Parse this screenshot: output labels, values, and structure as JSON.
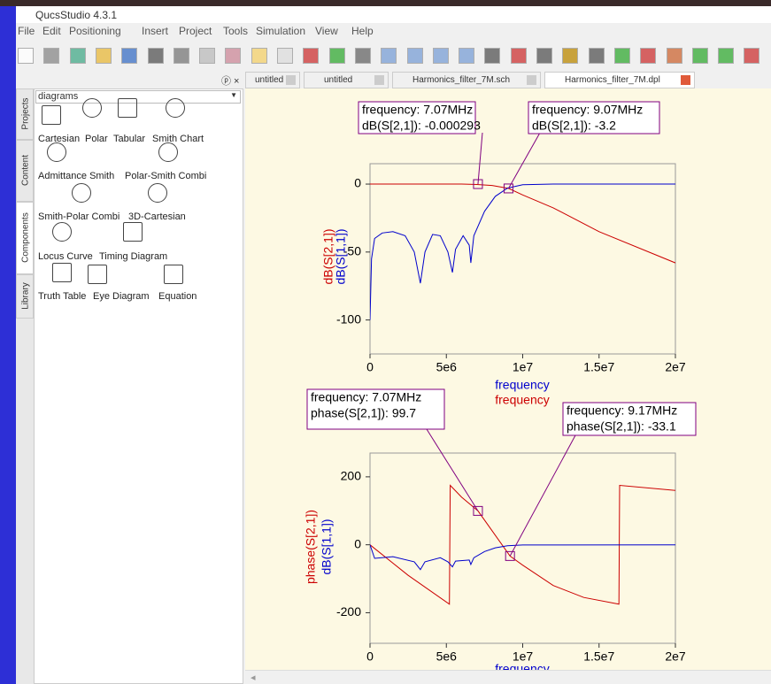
{
  "window": {
    "title": "QucsStudio 4.3.1"
  },
  "menu": [
    "File",
    "Edit",
    "Positioning",
    "Insert",
    "Project",
    "Tools",
    "Simulation",
    "View",
    "Help"
  ],
  "tabs": [
    "untitled",
    "untitled",
    "Harmonics_filter_7M.sch",
    "Harmonics_filter_7M.dpl"
  ],
  "side_tabs": [
    "Projects",
    "Content",
    "Components",
    "Library"
  ],
  "panel": {
    "dropdown": "diagrams",
    "items": [
      "Cartesian",
      "Polar",
      "Tabular",
      "Smith Chart",
      "Admittance Smith",
      "Polar-Smith Combi",
      "Smith-Polar Combi",
      "3D-Cartesian",
      "Locus Curve",
      "Timing Diagram",
      "Truth Table",
      "Eye Diagram",
      "Equation"
    ]
  },
  "chart_data": [
    {
      "type": "line",
      "xlim": [
        0,
        20000000
      ],
      "ylim": [
        -125,
        15
      ],
      "xticks": [
        0,
        {
          "value": 5000000,
          "label": "5e6"
        },
        {
          "value": 10000000,
          "label": "1e7"
        },
        {
          "value": 15000000,
          "label": "1.5e7"
        },
        {
          "value": 20000000,
          "label": "2e7"
        }
      ],
      "yticks": [
        -100,
        -50,
        0
      ],
      "xlabels": [
        {
          "text": "frequency",
          "color": "#0000cc"
        },
        {
          "text": "frequency",
          "color": "#cc0000"
        }
      ],
      "series": [
        {
          "name": "dB(S[2,1])",
          "color": "#cc0000",
          "x": [
            0,
            6000000,
            7000000,
            8000000,
            9070000,
            10000000,
            12000000,
            15000000,
            20000000
          ],
          "values": [
            0,
            0,
            -0.3,
            -1,
            -3.2,
            -8,
            -17.5,
            -35,
            -58
          ]
        },
        {
          "name": "dB(S[1,1])",
          "color": "#0000cc",
          "x": [
            0,
            100000,
            300000,
            800000,
            1500000,
            2300000,
            2900000,
            3300000,
            3600000,
            4100000,
            4600000,
            5100000,
            5400000,
            5600000,
            6100000,
            6500000,
            6600000,
            6800000,
            7500000,
            8200000,
            9000000,
            10000000,
            12000000,
            20000000
          ],
          "values": [
            -100,
            -55,
            -40,
            -36,
            -35,
            -38,
            -50,
            -73,
            -50,
            -37,
            -38,
            -50,
            -65,
            -48,
            -38,
            -45,
            -58,
            -38,
            -20,
            -9,
            -3,
            -0.5,
            0,
            0
          ]
        }
      ],
      "markers": [
        {
          "lines": [
            "frequency: 7.07MHz",
            "dB(S[2,1]): -0.000293"
          ],
          "x": 7070000,
          "y": -0.000293
        },
        {
          "lines": [
            "frequency: 9.07MHz",
            "dB(S[2,1]): -3.2"
          ],
          "x": 9070000,
          "y": -3.2
        }
      ]
    },
    {
      "type": "line",
      "xlim": [
        0,
        20000000
      ],
      "ylim": [
        -290,
        270
      ],
      "xticks": [
        0,
        {
          "value": 5000000,
          "label": "5e6"
        },
        {
          "value": 10000000,
          "label": "1e7"
        },
        {
          "value": 15000000,
          "label": "1.5e7"
        },
        {
          "value": 20000000,
          "label": "2e7"
        }
      ],
      "yticks": [
        -200,
        0,
        200
      ],
      "xlabels": [
        {
          "text": "frequency",
          "color": "#0000cc"
        }
      ],
      "series": [
        {
          "name": "phase(S[2,1])",
          "color": "#cc0000",
          "x": [
            0,
            2500000,
            5200000,
            5250000,
            6000000,
            7070000,
            9170000,
            10000000,
            12000000,
            14000000,
            16300000,
            16350000,
            20000000
          ],
          "values": [
            0,
            -90,
            -175,
            175,
            140,
            99.7,
            -33.1,
            -60,
            -120,
            -155,
            -175,
            175,
            160
          ]
        },
        {
          "name": "dB(S[1,1])",
          "color": "#0000cc",
          "x": [
            0,
            300000,
            1500000,
            2900000,
            3300000,
            3600000,
            4600000,
            5100000,
            5400000,
            5600000,
            6500000,
            6600000,
            6800000,
            7500000,
            8200000,
            9000000,
            10000000,
            20000000
          ],
          "values": [
            0,
            -40,
            -35,
            -50,
            -73,
            -50,
            -38,
            -50,
            -65,
            -48,
            -45,
            -58,
            -38,
            -20,
            -9,
            -3,
            -0.5,
            0
          ]
        }
      ],
      "markers": [
        {
          "lines": [
            "frequency: 7.07MHz",
            "phase(S[2,1]): 99.7"
          ],
          "x": 7070000,
          "y": 99.7
        },
        {
          "lines": [
            "frequency: 9.17MHz",
            "phase(S[2,1]): -33.1"
          ],
          "x": 9170000,
          "y": -33.1
        }
      ]
    }
  ]
}
